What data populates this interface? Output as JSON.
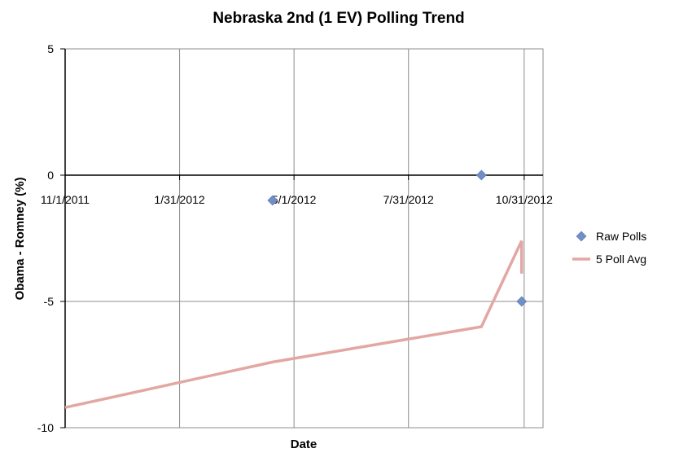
{
  "chart_data": {
    "type": "scatter",
    "title": "Nebraska 2nd (1 EV) Polling Trend",
    "xlabel": "Date",
    "ylabel": "Obama - Romney (%)",
    "x_is_date": true,
    "xlim": [
      "2011-11-01",
      "2012-11-15"
    ],
    "ylim": [
      -10,
      5
    ],
    "x_ticks": [
      "2011-11-01",
      "2012-01-31",
      "2012-05-01",
      "2012-07-31",
      "2012-10-31"
    ],
    "x_tick_labels": [
      "11/1/2011",
      "1/31/2012",
      "5/1/2012",
      "7/31/2012",
      "10/31/2012"
    ],
    "y_ticks": [
      5,
      0,
      -5,
      -10
    ],
    "y_tick_labels": [
      "5",
      "0",
      "-5",
      "-10"
    ],
    "grid": {
      "vertical": true,
      "horizontal": true
    },
    "legend": {
      "position": "right"
    },
    "series": [
      {
        "name": "Raw Polls",
        "kind": "scatter",
        "marker": "diamond",
        "color": "#6f8fc6",
        "points": [
          {
            "x": "2012-04-14",
            "y": -1.0
          },
          {
            "x": "2012-09-27",
            "y": 0.0
          },
          {
            "x": "2012-10-29",
            "y": -5.0
          }
        ]
      },
      {
        "name": "5 Poll Avg",
        "kind": "line",
        "color": "#e3a7a3",
        "points": [
          {
            "x": "2011-11-01",
            "y": -9.2
          },
          {
            "x": "2012-04-14",
            "y": -7.4
          },
          {
            "x": "2012-09-27",
            "y": -6.0
          },
          {
            "x": "2012-10-29",
            "y": -2.6
          },
          {
            "x": "2012-10-29",
            "y": -3.9
          }
        ]
      }
    ]
  }
}
